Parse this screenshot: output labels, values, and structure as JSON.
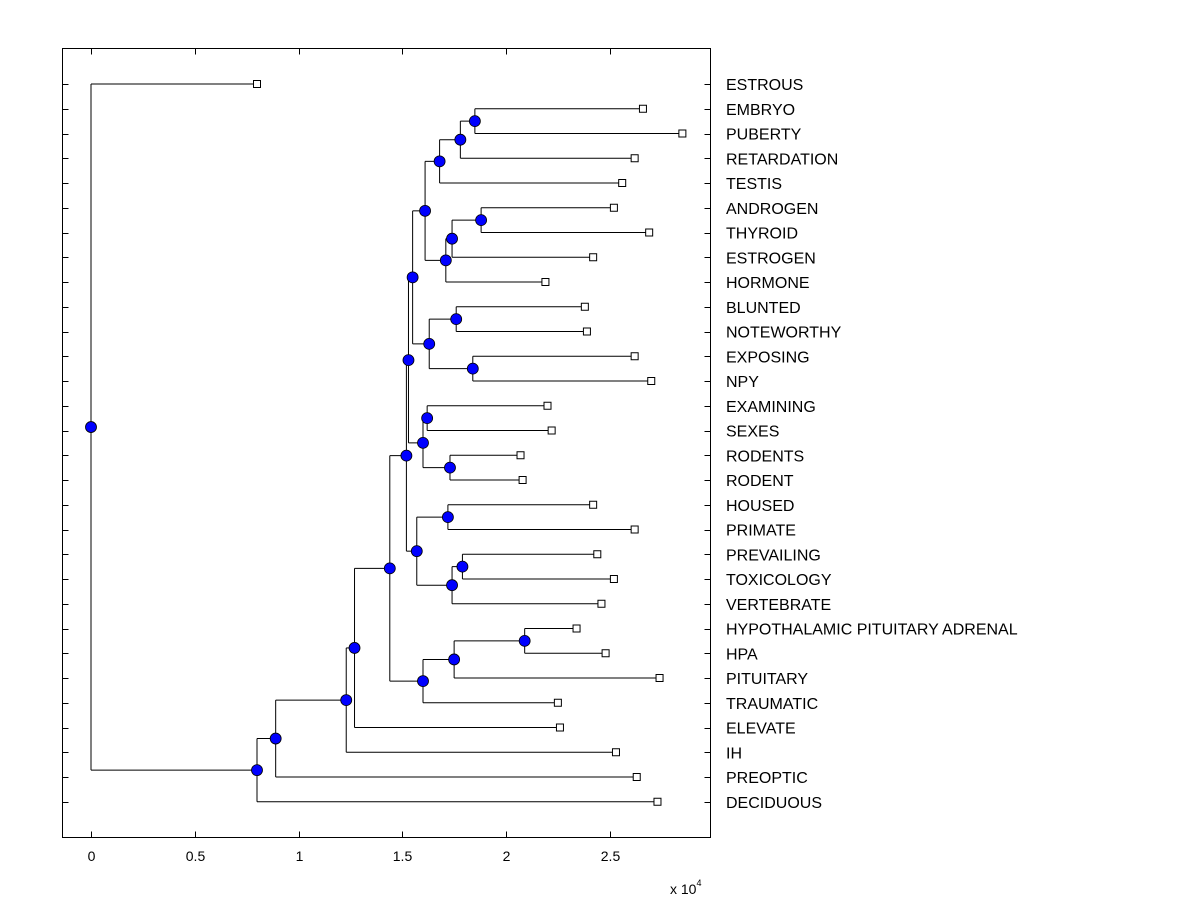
{
  "chart_data": {
    "type": "dendrogram",
    "orientation": "horizontal",
    "title": "",
    "xlabel": "",
    "ylabel": "",
    "x_scale_exponent_label": "x 10",
    "x_scale_exponent": "4",
    "xlim": [
      -0.07,
      3.0
    ],
    "xticks": [
      0,
      0.5,
      1,
      1.5,
      2,
      2.5
    ],
    "xtick_labels": [
      "0",
      "0.5",
      "1",
      "1.5",
      "2",
      "2.5"
    ],
    "grid": false,
    "colors": {
      "node": "#0000ff",
      "leaf_fill": "#ffffff",
      "line": "#000000"
    },
    "leaves": [
      {
        "label": "ESTROUS",
        "x": 0.8
      },
      {
        "label": "EMBRYO",
        "x": 2.66
      },
      {
        "label": "PUBERTY",
        "x": 2.85
      },
      {
        "label": "RETARDATION",
        "x": 2.62
      },
      {
        "label": "TESTIS",
        "x": 2.56
      },
      {
        "label": "ANDROGEN",
        "x": 2.52
      },
      {
        "label": "THYROID",
        "x": 2.69
      },
      {
        "label": "ESTROGEN",
        "x": 2.42
      },
      {
        "label": "HORMONE",
        "x": 2.19
      },
      {
        "label": "BLUNTED",
        "x": 2.38
      },
      {
        "label": "NOTEWORTHY",
        "x": 2.39
      },
      {
        "label": "EXPOSING",
        "x": 2.62
      },
      {
        "label": "NPY",
        "x": 2.7
      },
      {
        "label": "EXAMINING",
        "x": 2.2
      },
      {
        "label": "SEXES",
        "x": 2.22
      },
      {
        "label": "RODENTS",
        "x": 2.07
      },
      {
        "label": "RODENT",
        "x": 2.08
      },
      {
        "label": "HOUSED",
        "x": 2.42
      },
      {
        "label": "PRIMATE",
        "x": 2.62
      },
      {
        "label": "PREVAILING",
        "x": 2.44
      },
      {
        "label": "TOXICOLOGY",
        "x": 2.52
      },
      {
        "label": "VERTEBRATE",
        "x": 2.46
      },
      {
        "label": "HYPOTHALAMIC PITUITARY ADRENAL",
        "x": 2.34
      },
      {
        "label": "HPA",
        "x": 2.48
      },
      {
        "label": "PITUITARY",
        "x": 2.74
      },
      {
        "label": "TRAUMATIC",
        "x": 2.25
      },
      {
        "label": "ELEVATE",
        "x": 2.26
      },
      {
        "label": "IH",
        "x": 2.53
      },
      {
        "label": "PREOPTIC",
        "x": 2.63
      },
      {
        "label": "DECIDUOUS",
        "x": 2.73
      }
    ],
    "nodes": [
      {
        "id": "n1",
        "x": 1.85,
        "children": [
          1,
          2
        ]
      },
      {
        "id": "n2",
        "x": 1.78,
        "children": [
          "n1",
          3
        ]
      },
      {
        "id": "n3",
        "x": 1.68,
        "children": [
          "n2",
          4
        ]
      },
      {
        "id": "n4",
        "x": 1.88,
        "children": [
          5,
          6
        ]
      },
      {
        "id": "n5",
        "x": 1.74,
        "children": [
          "n4",
          7
        ]
      },
      {
        "id": "n6",
        "x": 1.71,
        "children": [
          "n5",
          8
        ]
      },
      {
        "id": "n7",
        "x": 1.61,
        "children": [
          "n3",
          "n6"
        ]
      },
      {
        "id": "n8",
        "x": 1.76,
        "children": [
          9,
          10
        ]
      },
      {
        "id": "n9",
        "x": 1.84,
        "children": [
          11,
          12
        ]
      },
      {
        "id": "n10",
        "x": 1.63,
        "children": [
          "n8",
          "n9"
        ]
      },
      {
        "id": "n11",
        "x": 1.55,
        "children": [
          "n7",
          "n10"
        ]
      },
      {
        "id": "n12",
        "x": 1.62,
        "children": [
          13,
          14
        ]
      },
      {
        "id": "n13",
        "x": 1.73,
        "children": [
          15,
          16
        ]
      },
      {
        "id": "n14",
        "x": 1.6,
        "children": [
          "n12",
          "n13"
        ]
      },
      {
        "id": "n15",
        "x": 1.53,
        "children": [
          "n11",
          "n14"
        ]
      },
      {
        "id": "n16",
        "x": 1.72,
        "children": [
          17,
          18
        ]
      },
      {
        "id": "n17",
        "x": 1.79,
        "children": [
          19,
          20
        ]
      },
      {
        "id": "n18",
        "x": 1.74,
        "children": [
          "n17",
          21
        ]
      },
      {
        "id": "n19",
        "x": 1.57,
        "children": [
          "n16",
          "n18"
        ]
      },
      {
        "id": "n20",
        "x": 1.52,
        "children": [
          "n15",
          "n19"
        ]
      },
      {
        "id": "n21",
        "x": 2.09,
        "children": [
          22,
          23
        ]
      },
      {
        "id": "n22",
        "x": 1.75,
        "children": [
          "n21",
          24
        ]
      },
      {
        "id": "n23",
        "x": 1.6,
        "children": [
          "n22",
          25
        ]
      },
      {
        "id": "n24",
        "x": 1.44,
        "children": [
          "n20",
          "n23"
        ]
      },
      {
        "id": "n25",
        "x": 1.27,
        "children": [
          "n24",
          26
        ]
      },
      {
        "id": "n26",
        "x": 1.23,
        "children": [
          "n25",
          27
        ]
      },
      {
        "id": "n27",
        "x": 0.89,
        "children": [
          "n26",
          28
        ]
      },
      {
        "id": "n28",
        "x": 0.8,
        "children": [
          "n27",
          29
        ]
      },
      {
        "id": "n29",
        "x": 0.0,
        "children": [
          0,
          "n28"
        ]
      }
    ]
  }
}
